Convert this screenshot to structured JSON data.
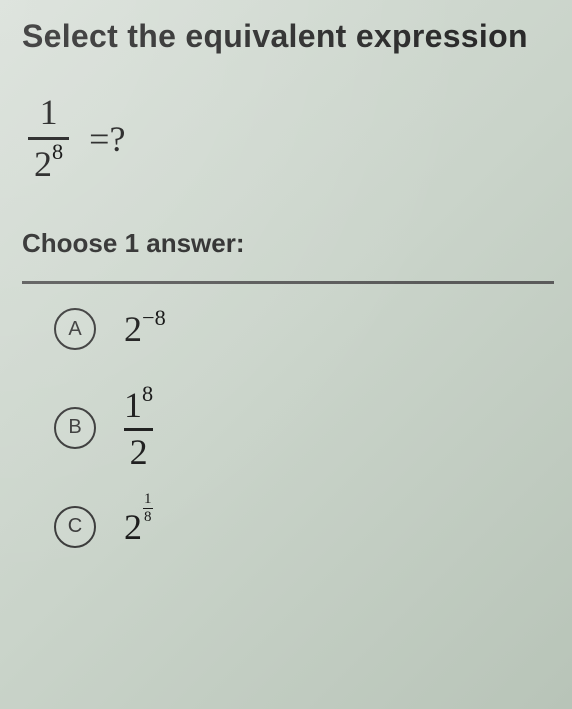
{
  "title": "Select the equivalent expression",
  "question": {
    "fraction": {
      "numerator": "1",
      "denom_base": "2",
      "denom_exp": "8"
    },
    "equals": "=?"
  },
  "choose_label": "Choose 1 answer:",
  "options": {
    "a": {
      "letter": "A",
      "base": "2",
      "exp": "−8"
    },
    "b": {
      "letter": "B",
      "num_base": "1",
      "num_exp": "8",
      "den": "2"
    },
    "c": {
      "letter": "C",
      "base": "2",
      "exp_num": "1",
      "exp_den": "8"
    }
  },
  "style": {
    "background": "#cad4ca",
    "text_color": "#2a2a2a",
    "math_color": "#1a1a1a",
    "divider_color": "#5a5a5a",
    "circle_border": "#3a3a3a",
    "title_fontsize": 32,
    "math_fontsize": 36,
    "choose_fontsize": 26,
    "letter_fontsize": 20
  }
}
